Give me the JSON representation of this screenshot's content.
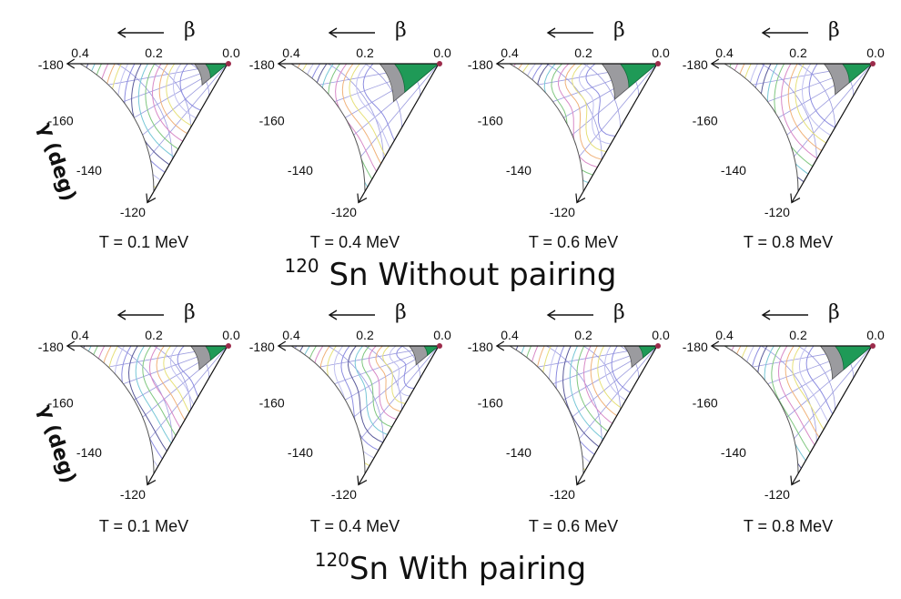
{
  "figure": {
    "rows": [
      {
        "title_iso": "120",
        "title_text": " Sn Without pairing"
      },
      {
        "title_iso": "120",
        "title_text": "Sn With pairing"
      }
    ]
  },
  "chart_data": [
    {
      "type": "contour",
      "panel": "without-pairing-T0.1",
      "xlabel": "β",
      "ylabel": "γ (deg)",
      "beta_ticks": [
        "0.4",
        "0.2",
        "0.0"
      ],
      "gamma_ticks": [
        "-180",
        "-160",
        "-140",
        "-120"
      ],
      "caption": "T = 0.1 MeV",
      "minimum_region_beta_max": 0.06,
      "saddle_region_beta_max": 0.09
    },
    {
      "type": "contour",
      "panel": "without-pairing-T0.4",
      "xlabel": "β",
      "ylabel": "",
      "beta_ticks": [
        "0.4",
        "0.2",
        "0.0"
      ],
      "gamma_ticks": [
        "-180",
        "-160",
        "-140",
        "-120"
      ],
      "caption": "T = 0.4 MeV",
      "minimum_region_beta_max": 0.12,
      "saddle_region_beta_max": 0.16
    },
    {
      "type": "contour",
      "panel": "without-pairing-T0.6",
      "xlabel": "β",
      "ylabel": "",
      "beta_ticks": [
        "0.4",
        "0.2",
        "0.0"
      ],
      "gamma_ticks": [
        "-180",
        "-160",
        "-140",
        "-120"
      ],
      "caption": "T = 0.6 MeV",
      "minimum_region_beta_max": 0.1,
      "saddle_region_beta_max": 0.15
    },
    {
      "type": "contour",
      "panel": "without-pairing-T0.8",
      "xlabel": "β",
      "ylabel": "",
      "beta_ticks": [
        "0.4",
        "0.2",
        "0.0"
      ],
      "gamma_ticks": [
        "-180",
        "-160",
        "-140",
        "-120"
      ],
      "caption": "T = 0.8 MeV",
      "minimum_region_beta_max": 0.08,
      "saddle_region_beta_max": 0.13
    },
    {
      "type": "contour",
      "panel": "with-pairing-T0.1",
      "xlabel": "β",
      "ylabel": "γ (deg)",
      "beta_ticks": [
        "0.4",
        "0.2",
        "0.0"
      ],
      "gamma_ticks": [
        "-180",
        "-160",
        "-140",
        "-120"
      ],
      "caption": "T = 0.1 MeV",
      "minimum_region_beta_max": 0.06,
      "saddle_region_beta_max": 0.1
    },
    {
      "type": "contour",
      "panel": "with-pairing-T0.4",
      "xlabel": "β",
      "ylabel": "",
      "beta_ticks": [
        "0.4",
        "0.2",
        "0.0"
      ],
      "gamma_ticks": [
        "-180",
        "-160",
        "-140",
        "-120"
      ],
      "caption": "T = 0.4 MeV",
      "minimum_region_beta_max": 0.04,
      "saddle_region_beta_max": 0.08
    },
    {
      "type": "contour",
      "panel": "with-pairing-T0.6",
      "xlabel": "β",
      "ylabel": "",
      "beta_ticks": [
        "0.4",
        "0.2",
        "0.0"
      ],
      "gamma_ticks": [
        "-180",
        "-160",
        "-140",
        "-120"
      ],
      "caption": "T = 0.6 MeV",
      "minimum_region_beta_max": 0.05,
      "saddle_region_beta_max": 0.09
    },
    {
      "type": "contour",
      "panel": "with-pairing-T0.8",
      "xlabel": "β",
      "ylabel": "",
      "beta_ticks": [
        "0.4",
        "0.2",
        "0.0"
      ],
      "gamma_ticks": [
        "-180",
        "-160",
        "-140",
        "-120"
      ],
      "caption": "T = 0.8 MeV",
      "minimum_region_beta_max": 0.1,
      "saddle_region_beta_max": 0.14
    }
  ]
}
